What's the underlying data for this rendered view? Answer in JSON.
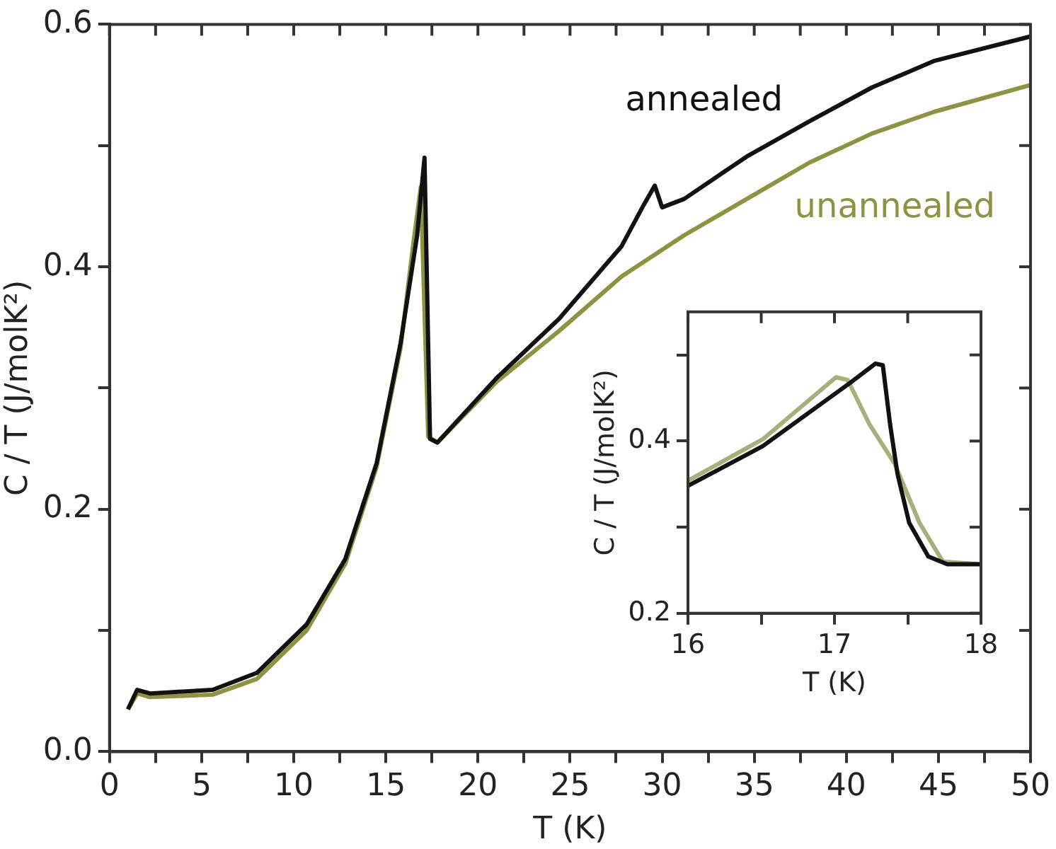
{
  "chart_data": [
    {
      "type": "line",
      "xlabel": "T (K)",
      "ylabel": "C / T (J/molK²)",
      "xlim": [
        0,
        50
      ],
      "ylim": [
        0,
        0.6
      ],
      "marker": "none",
      "xticks": [
        0,
        {
          "value": 2.5,
          "label": null
        },
        5,
        {
          "value": 7.5,
          "label": null
        },
        10,
        {
          "value": 12.5,
          "label": null
        },
        15,
        {
          "value": 17.5,
          "label": null
        },
        20,
        {
          "value": 22.5,
          "label": null
        },
        25,
        {
          "value": 27.5,
          "label": null
        },
        30,
        {
          "value": 32.5,
          "label": null
        },
        35,
        {
          "value": 37.5,
          "label": null
        },
        40,
        {
          "value": 42.5,
          "label": null
        },
        45,
        {
          "value": 47.5,
          "label": null
        },
        50
      ],
      "yticks": [
        {
          "value": 0,
          "label": "0.0"
        },
        {
          "value": 0.1,
          "label": null
        },
        {
          "value": 0.2,
          "label": "0.2"
        },
        {
          "value": 0.3,
          "label": null
        },
        {
          "value": 0.4,
          "label": "0.4"
        },
        {
          "value": 0.5,
          "label": null
        },
        {
          "value": 0.6,
          "label": "0.6"
        }
      ],
      "series": [
        {
          "name": "annealed",
          "color": "#111111",
          "x": [
            1.0,
            1.5,
            2.2,
            5.6,
            8.0,
            10.7,
            12.8,
            14.5,
            15.8,
            16.7,
            17.1,
            17.4,
            17.8,
            21.0,
            24.4,
            27.8,
            29.0,
            29.6,
            30.0,
            31.2,
            34.6,
            38.0,
            41.4,
            44.8,
            50
          ],
          "values": [
            0.035,
            0.051,
            0.048,
            0.051,
            0.065,
            0.105,
            0.159,
            0.238,
            0.337,
            0.426,
            0.49,
            0.258,
            0.255,
            0.308,
            0.357,
            0.417,
            0.451,
            0.467,
            0.449,
            0.456,
            0.491,
            0.52,
            0.548,
            0.57,
            0.59
          ]
        },
        {
          "name": "unannealed",
          "color": "#8c9440",
          "x": [
            1.0,
            1.5,
            2.2,
            5.6,
            8.0,
            10.7,
            12.8,
            14.5,
            15.8,
            16.5,
            16.9,
            17.3,
            17.8,
            21.0,
            24.4,
            27.8,
            31.2,
            34.6,
            38.0,
            41.4,
            44.8,
            50
          ],
          "values": [
            0.035,
            0.048,
            0.045,
            0.047,
            0.06,
            0.1,
            0.155,
            0.235,
            0.333,
            0.42,
            0.466,
            0.26,
            0.255,
            0.305,
            0.347,
            0.392,
            0.426,
            0.456,
            0.486,
            0.51,
            0.528,
            0.55
          ]
        }
      ]
    },
    {
      "type": "line",
      "xlabel": "T (K)",
      "ylabel": "C / T (J/molK²)",
      "xlim": [
        16,
        18
      ],
      "ylim": [
        0.2,
        0.55
      ],
      "marker": "none",
      "xticks": [
        16,
        {
          "value": 16.5,
          "label": null
        },
        17,
        {
          "value": 17.5,
          "label": null
        },
        18
      ],
      "yticks": [
        0.2,
        {
          "value": 0.3,
          "label": null
        },
        0.4,
        {
          "value": 0.5,
          "label": null
        }
      ],
      "series": [
        {
          "color": "#111111",
          "x": [
            16,
            16.51,
            17.11,
            17.28,
            17.33,
            17.38,
            17.43,
            17.51,
            17.64,
            17.77,
            18
          ],
          "values": [
            0.348,
            0.394,
            0.468,
            0.49,
            0.488,
            0.419,
            0.362,
            0.305,
            0.266,
            0.257,
            0.257
          ]
        },
        {
          "color": "#a8b07a",
          "x": [
            16,
            16.51,
            17.01,
            17.09,
            17.24,
            17.41,
            17.58,
            17.74,
            18
          ],
          "values": [
            0.354,
            0.402,
            0.474,
            0.471,
            0.419,
            0.374,
            0.305,
            0.26,
            0.257
          ]
        }
      ]
    }
  ]
}
